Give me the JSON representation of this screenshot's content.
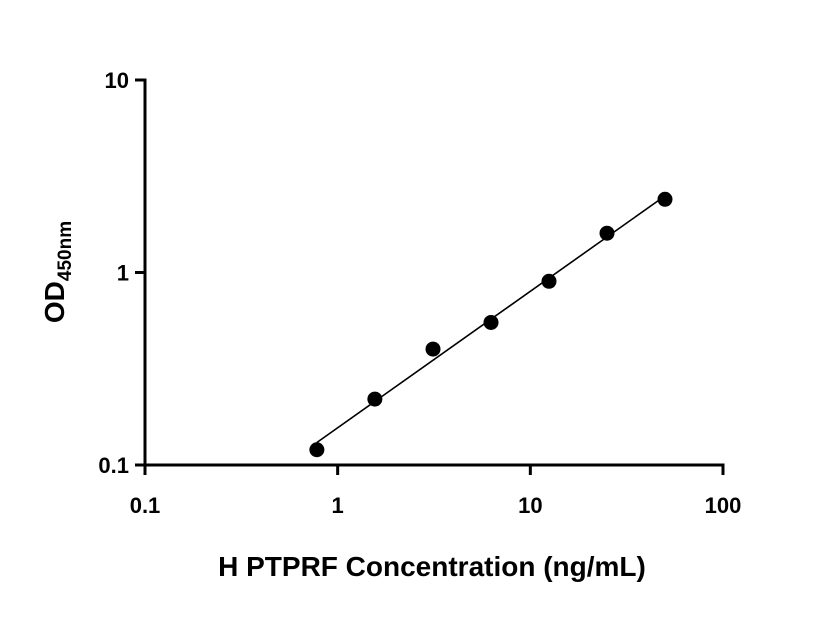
{
  "chart_data": {
    "type": "scatter",
    "xlabel": "H PTPRF Concentration (ng/mL)",
    "ylabel": "OD",
    "ylabel_subscript": "450nm",
    "x_scale": "log",
    "y_scale": "log",
    "xlim": [
      0.1,
      100
    ],
    "ylim": [
      0.1,
      10
    ],
    "x_ticks": [
      "0.1",
      "1",
      "10",
      "100"
    ],
    "y_ticks": [
      "0.1",
      "1",
      "10"
    ],
    "grid": false,
    "series": [
      {
        "marker": "filled-circle",
        "color": "#000000",
        "x": [
          0.78,
          1.56,
          3.125,
          6.25,
          12.5,
          25,
          50
        ],
        "y": [
          0.12,
          0.22,
          0.4,
          0.55,
          0.9,
          1.6,
          2.4
        ]
      }
    ],
    "fit_line": {
      "type": "linear-on-log-log",
      "color": "#000000",
      "x_range": [
        0.78,
        50
      ]
    }
  }
}
